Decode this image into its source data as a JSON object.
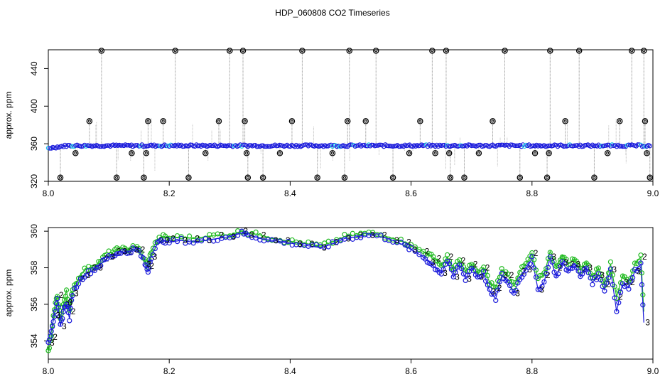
{
  "figure": {
    "title": "HDP_060808  CO2 Timeseries"
  },
  "chart_data": [
    {
      "type": "scatter",
      "title": "",
      "xlabel": "",
      "ylabel": "approx. ppm",
      "xlim": [
        8.0,
        9.0
      ],
      "ylim": [
        320,
        460
      ],
      "xticks": [
        "8.0",
        "8.2",
        "8.4",
        "8.6",
        "8.8",
        "9.0"
      ],
      "yticks": [
        "320",
        "360",
        "400",
        "440"
      ],
      "grid": false,
      "legend": "none",
      "colors": {
        "baseline": "#1a1adb",
        "baseline_highlight": "#22c8e8",
        "flagged": "#000000",
        "spikes": "#8c8c8c"
      },
      "baseline_y": 358,
      "series": [
        {
          "marker": "open-circle",
          "x": [
            8.02,
            8.045,
            8.068,
            8.088,
            8.113,
            8.138,
            8.158,
            8.162,
            8.165,
            8.19,
            8.21,
            8.232,
            8.26,
            8.282,
            8.3,
            8.322,
            8.325,
            8.328,
            8.33,
            8.355,
            8.383,
            8.403,
            8.42,
            8.445,
            8.47,
            8.49,
            8.495,
            8.498,
            8.525,
            8.542,
            8.57,
            8.597,
            8.615,
            8.635,
            8.64,
            8.658,
            8.663,
            8.665,
            8.688,
            8.712,
            8.735,
            8.755,
            8.78,
            8.805,
            8.825,
            8.828,
            8.83,
            8.855,
            8.878,
            8.903,
            8.925,
            8.945,
            8.965,
            8.985,
            8.987,
            8.99,
            8.995
          ],
          "y": [
            324,
            350,
            384,
            459,
            324,
            350,
            324,
            350,
            384,
            384,
            459,
            324,
            350,
            384,
            459,
            459,
            384,
            350,
            324,
            324,
            350,
            384,
            459,
            324,
            350,
            324,
            384,
            459,
            384,
            459,
            324,
            350,
            384,
            459,
            350,
            459,
            350,
            324,
            324,
            350,
            384,
            459,
            324,
            350,
            324,
            350,
            459,
            384,
            459,
            324,
            350,
            384,
            459,
            459,
            384,
            350,
            324
          ]
        }
      ]
    },
    {
      "type": "line",
      "title": "",
      "xlabel": "",
      "ylabel": "approx. ppm",
      "xlim": [
        8.0,
        9.0
      ],
      "ylim": [
        353,
        360.2
      ],
      "xticks": [
        "8.0",
        "8.2",
        "8.4",
        "8.6",
        "8.8",
        "9.0"
      ],
      "yticks": [
        "354",
        "356",
        "358",
        "360"
      ],
      "grid": false,
      "legend": "none",
      "marker_labels": [
        "3",
        "2"
      ],
      "colors": {
        "series_3": "#1a1adb",
        "series_2": "#22bb22"
      },
      "series": [
        {
          "marker": "3",
          "x": [
            8.0,
            8.005,
            8.01,
            8.015,
            8.02,
            8.025,
            8.03,
            8.035,
            8.04,
            8.05,
            8.06,
            8.07,
            8.08,
            8.09,
            8.1,
            8.11,
            8.12,
            8.13,
            8.14,
            8.15,
            8.16,
            8.165,
            8.17,
            8.18,
            8.19,
            8.2,
            8.22,
            8.24,
            8.26,
            8.28,
            8.3,
            8.32,
            8.33,
            8.35,
            8.37,
            8.39,
            8.41,
            8.43,
            8.45,
            8.47,
            8.49,
            8.51,
            8.53,
            8.55,
            8.57,
            8.59,
            8.6,
            8.62,
            8.63,
            8.64,
            8.65,
            8.66,
            8.67,
            8.68,
            8.69,
            8.7,
            8.71,
            8.72,
            8.73,
            8.74,
            8.75,
            8.76,
            8.77,
            8.78,
            8.79,
            8.8,
            8.81,
            8.82,
            8.83,
            8.84,
            8.85,
            8.86,
            8.87,
            8.88,
            8.89,
            8.9,
            8.91,
            8.92,
            8.93,
            8.94,
            8.95,
            8.96,
            8.97,
            8.98,
            8.985
          ],
          "y": [
            353.9,
            354.6,
            355.4,
            356.2,
            354.8,
            355.6,
            356.1,
            355.2,
            356.6,
            357.2,
            357.6,
            357.8,
            358.0,
            358.3,
            358.6,
            358.7,
            358.9,
            358.8,
            359.0,
            358.9,
            358.2,
            357.8,
            358.6,
            359.3,
            359.5,
            359.4,
            359.5,
            359.4,
            359.5,
            359.6,
            359.7,
            359.9,
            359.8,
            359.6,
            359.5,
            359.4,
            359.3,
            359.2,
            359.1,
            359.3,
            359.6,
            359.7,
            359.8,
            359.7,
            359.5,
            359.2,
            359.0,
            358.6,
            358.3,
            358.0,
            357.7,
            358.4,
            357.5,
            358.2,
            357.4,
            358.0,
            357.5,
            357.7,
            356.7,
            356.3,
            357.6,
            357.2,
            356.6,
            357.4,
            357.9,
            358.5,
            356.8,
            357.2,
            358.6,
            357.5,
            358.3,
            357.8,
            358.2,
            357.5,
            358.0,
            357.2,
            357.6,
            356.8,
            357.9,
            355.6,
            357.2,
            356.9,
            357.8,
            358.2,
            355.0
          ]
        },
        {
          "marker": "2",
          "x": [
            8.0,
            8.005,
            8.01,
            8.015,
            8.02,
            8.025,
            8.03,
            8.035,
            8.04,
            8.05,
            8.06,
            8.07,
            8.08,
            8.09,
            8.1,
            8.11,
            8.12,
            8.13,
            8.14,
            8.15,
            8.16,
            8.165,
            8.17,
            8.18,
            8.19,
            8.2,
            8.22,
            8.24,
            8.26,
            8.28,
            8.3,
            8.32,
            8.33,
            8.35,
            8.37,
            8.39,
            8.41,
            8.43,
            8.45,
            8.47,
            8.49,
            8.51,
            8.53,
            8.55,
            8.57,
            8.59,
            8.6,
            8.62,
            8.63,
            8.64,
            8.65,
            8.66,
            8.67,
            8.68,
            8.69,
            8.7,
            8.71,
            8.72,
            8.73,
            8.74,
            8.75,
            8.76,
            8.77,
            8.78,
            8.79,
            8.8,
            8.81,
            8.82,
            8.83,
            8.84,
            8.85,
            8.86,
            8.87,
            8.88,
            8.89,
            8.9,
            8.91,
            8.92,
            8.93,
            8.94,
            8.95,
            8.96,
            8.97,
            8.98,
            8.985
          ],
          "y": [
            353.4,
            354.2,
            355.8,
            356.5,
            355.2,
            356.0,
            356.8,
            355.6,
            356.9,
            357.4,
            357.9,
            358.0,
            358.2,
            358.5,
            358.8,
            358.9,
            359.1,
            358.9,
            359.2,
            359.0,
            358.4,
            358.1,
            358.9,
            359.5,
            359.7,
            359.6,
            359.7,
            359.6,
            359.7,
            359.8,
            359.8,
            360.0,
            359.9,
            359.8,
            359.6,
            359.5,
            359.4,
            359.3,
            359.2,
            359.4,
            359.7,
            359.8,
            359.9,
            359.8,
            359.6,
            359.4,
            359.2,
            358.9,
            358.7,
            358.5,
            358.1,
            358.6,
            357.9,
            358.4,
            357.8,
            358.2,
            357.7,
            358.0,
            357.2,
            356.9,
            357.9,
            357.6,
            357.0,
            357.8,
            358.2,
            358.8,
            357.4,
            357.6,
            358.9,
            358.0,
            358.7,
            358.2,
            358.5,
            357.9,
            358.3,
            357.5,
            358.0,
            357.1,
            358.2,
            356.4,
            357.6,
            357.2,
            358.2,
            358.6,
            355.6
          ]
        }
      ]
    }
  ]
}
